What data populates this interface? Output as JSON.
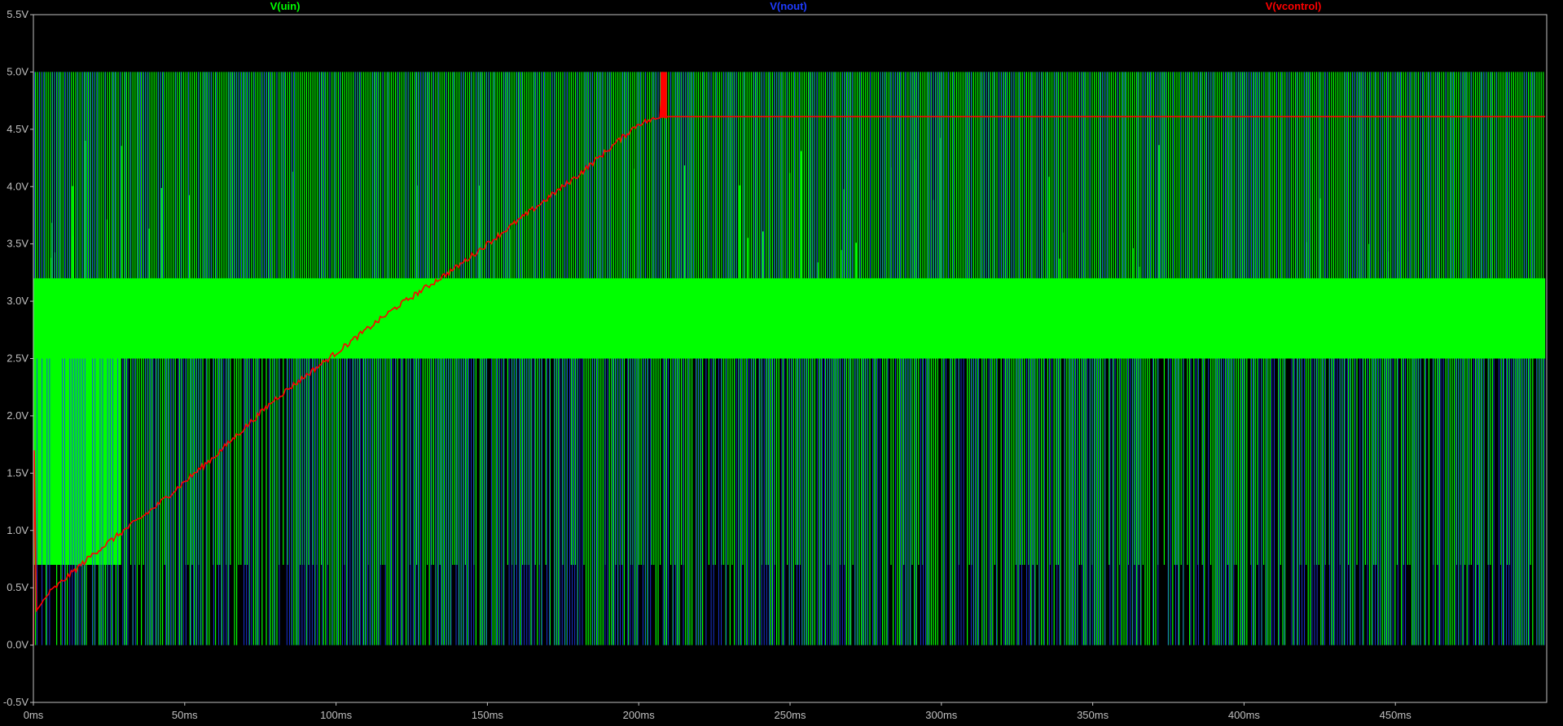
{
  "chart_data": {
    "type": "line",
    "title": "",
    "xlabel": "",
    "ylabel": "",
    "xlim": [
      0,
      0.5
    ],
    "ylim": [
      -0.5,
      5.5
    ],
    "x_unit": "s",
    "y_unit": "V",
    "x_ticks": [
      {
        "value": 0,
        "label": "0ms"
      },
      {
        "value": 0.05,
        "label": "50ms"
      },
      {
        "value": 0.1,
        "label": "100ms"
      },
      {
        "value": 0.15,
        "label": "150ms"
      },
      {
        "value": 0.2,
        "label": "200ms"
      },
      {
        "value": 0.25,
        "label": "250ms"
      },
      {
        "value": 0.3,
        "label": "300ms"
      },
      {
        "value": 0.35,
        "label": "350ms"
      },
      {
        "value": 0.4,
        "label": "400ms"
      },
      {
        "value": 0.45,
        "label": "450ms"
      }
    ],
    "y_ticks": [
      {
        "value": 5.5,
        "label": "5.5V"
      },
      {
        "value": 5.0,
        "label": "5.0V"
      },
      {
        "value": 4.5,
        "label": "4.5V"
      },
      {
        "value": 4.0,
        "label": "4.0V"
      },
      {
        "value": 3.5,
        "label": "3.5V"
      },
      {
        "value": 3.0,
        "label": "3.0V"
      },
      {
        "value": 2.5,
        "label": "2.5V"
      },
      {
        "value": 2.0,
        "label": "2.0V"
      },
      {
        "value": 1.5,
        "label": "1.5V"
      },
      {
        "value": 1.0,
        "label": "1.0V"
      },
      {
        "value": 0.5,
        "label": "0.5V"
      },
      {
        "value": 0.0,
        "label": "0.0V"
      },
      {
        "value": -0.5,
        "label": "-0.5V"
      }
    ],
    "grid": false,
    "legend_position": "top",
    "series": [
      {
        "name": "V(uin)",
        "color": "#00ff00",
        "style": "dense switching",
        "levels": {
          "high": 5.0,
          "mid_upper": 3.2,
          "mid_lower": 2.5,
          "low_band": 0.7,
          "min": 0.0
        },
        "t_range": [
          0,
          0.4995
        ]
      },
      {
        "name": "V(nout)",
        "color": "#1e3cff",
        "style": "dense switching",
        "levels": {
          "high": 5.0,
          "low": 0.0
        },
        "t_range": [
          0,
          0.4995
        ]
      },
      {
        "name": "V(vcontrol)",
        "color": "#ff0000",
        "style": "line",
        "x": [
          0,
          0.0003,
          0.001,
          0.005,
          0.02,
          0.04,
          0.06,
          0.08,
          0.1,
          0.12,
          0.14,
          0.16,
          0.18,
          0.2,
          0.207,
          0.208,
          0.209,
          0.2095,
          0.4995
        ],
        "y": [
          0.0,
          1.7,
          0.3,
          0.45,
          0.8,
          1.2,
          1.65,
          2.15,
          2.55,
          2.95,
          3.3,
          3.7,
          4.1,
          4.55,
          4.6,
          5.0,
          4.6,
          4.61,
          4.61
        ]
      }
    ]
  }
}
